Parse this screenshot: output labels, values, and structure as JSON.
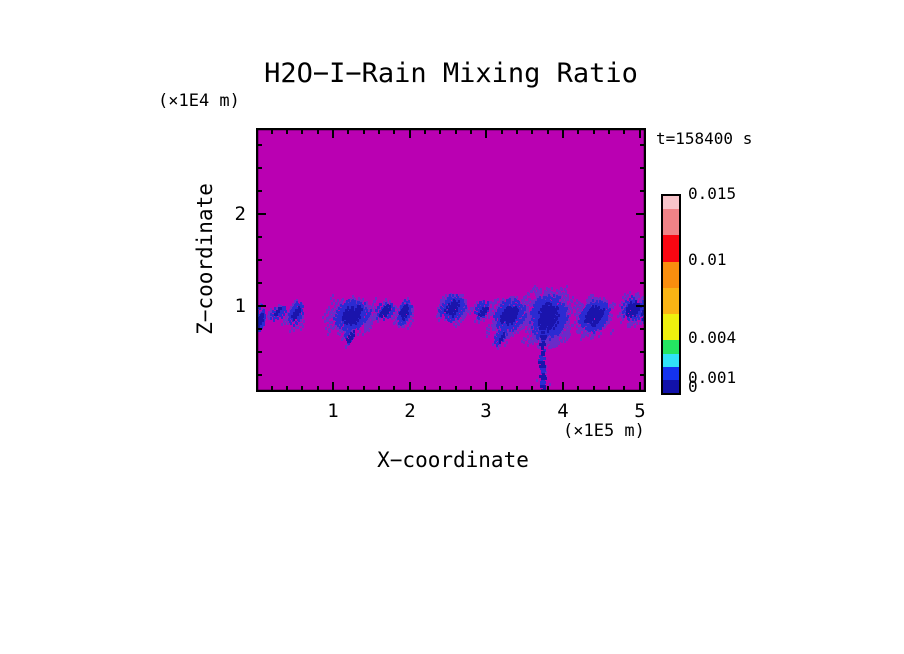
{
  "title": "H2O−I−Rain Mixing Ratio",
  "time_label": "t=158400 s",
  "axes": {
    "x": {
      "label": "X−coordinate",
      "unit": "(×1E5 m)",
      "tick_labels": [
        "1",
        "2",
        "3",
        "4",
        "5"
      ],
      "tick_values": [
        1,
        2,
        3,
        4,
        5
      ]
    },
    "z": {
      "label": "Z−coordinate",
      "unit": "(×1E4 m)",
      "tick_labels": [
        "1",
        "2"
      ],
      "tick_values": [
        1,
        2
      ]
    }
  },
  "colorbar": {
    "tick_labels": [
      "0.015",
      "0.01",
      "0.004",
      "0.001",
      "0"
    ],
    "tick_values": [
      0.015,
      0.01,
      0.004,
      0.001,
      0
    ],
    "levels": [
      0,
      0.001,
      0.002,
      0.003,
      0.004,
      0.006,
      0.008,
      0.01,
      0.012,
      0.014,
      0.015
    ],
    "colors_bottom_to_top": [
      "#1212AA",
      "#1433EE",
      "#30E2F8",
      "#24E562",
      "#EEF00E",
      "#FAB414",
      "#FA8E0E",
      "#FA0612",
      "#F08287",
      "#F8C4CA"
    ]
  },
  "chart_data": {
    "type": "heatmap",
    "title": "H2O−I−Rain Mixing Ratio",
    "xlabel": "X−coordinate (×1E5 m)",
    "ylabel": "Z−coordinate (×1E4 m)",
    "time_annotation": "t=158400 s",
    "xlim": [
      0,
      5.08
    ],
    "zlim": [
      0.08,
      2.95
    ],
    "value_levels": [
      0,
      0.001,
      0.002,
      0.003,
      0.004,
      0.006,
      0.008,
      0.01,
      0.012,
      0.014,
      0.015
    ],
    "field_background_color": "#BA00B2",
    "speckle_colors": {
      "fringe": "#6B2AC8",
      "mid": "#2B2BD2",
      "core": "#1A14AC"
    },
    "rain_band_z_center": 0.95,
    "clusters": [
      {
        "x": 0.03,
        "z": 0.87,
        "hw": 0.06,
        "hh": 0.16,
        "d": 0.75
      },
      {
        "x": 0.28,
        "z": 0.94,
        "hw": 0.1,
        "hh": 0.08,
        "d": 0.35
      },
      {
        "x": 0.51,
        "z": 0.93,
        "hw": 0.09,
        "hh": 0.13,
        "d": 0.55
      },
      {
        "x": 1.24,
        "z": 0.92,
        "hw": 0.26,
        "hh": 0.16,
        "d": 0.8
      },
      {
        "x": 1.22,
        "z": 0.7,
        "hw": 0.07,
        "hh": 0.09,
        "d": 0.45
      },
      {
        "x": 1.67,
        "z": 0.97,
        "hw": 0.13,
        "hh": 0.09,
        "d": 0.45
      },
      {
        "x": 1.93,
        "z": 0.95,
        "hw": 0.09,
        "hh": 0.13,
        "d": 0.7
      },
      {
        "x": 2.56,
        "z": 1.0,
        "hw": 0.18,
        "hh": 0.13,
        "d": 0.6
      },
      {
        "x": 2.94,
        "z": 0.97,
        "hw": 0.12,
        "hh": 0.09,
        "d": 0.4
      },
      {
        "x": 3.3,
        "z": 0.92,
        "hw": 0.22,
        "hh": 0.17,
        "d": 0.85
      },
      {
        "x": 3.18,
        "z": 0.68,
        "hw": 0.08,
        "hh": 0.08,
        "d": 0.5
      },
      {
        "x": 3.8,
        "z": 0.9,
        "hw": 0.26,
        "hh": 0.26,
        "d": 1.0
      },
      {
        "x": 4.4,
        "z": 0.92,
        "hw": 0.21,
        "hh": 0.17,
        "d": 0.85
      },
      {
        "x": 4.92,
        "z": 0.99,
        "hw": 0.16,
        "hh": 0.13,
        "d": 0.6
      },
      {
        "x": 5.07,
        "z": 0.95,
        "hw": 0.06,
        "hh": 0.11,
        "d": 0.5
      }
    ],
    "downdraft_streak": {
      "x": 3.74,
      "z_top": 0.93,
      "z_bottom": 0.0,
      "half_width": 0.04,
      "d": 0.9
    }
  }
}
